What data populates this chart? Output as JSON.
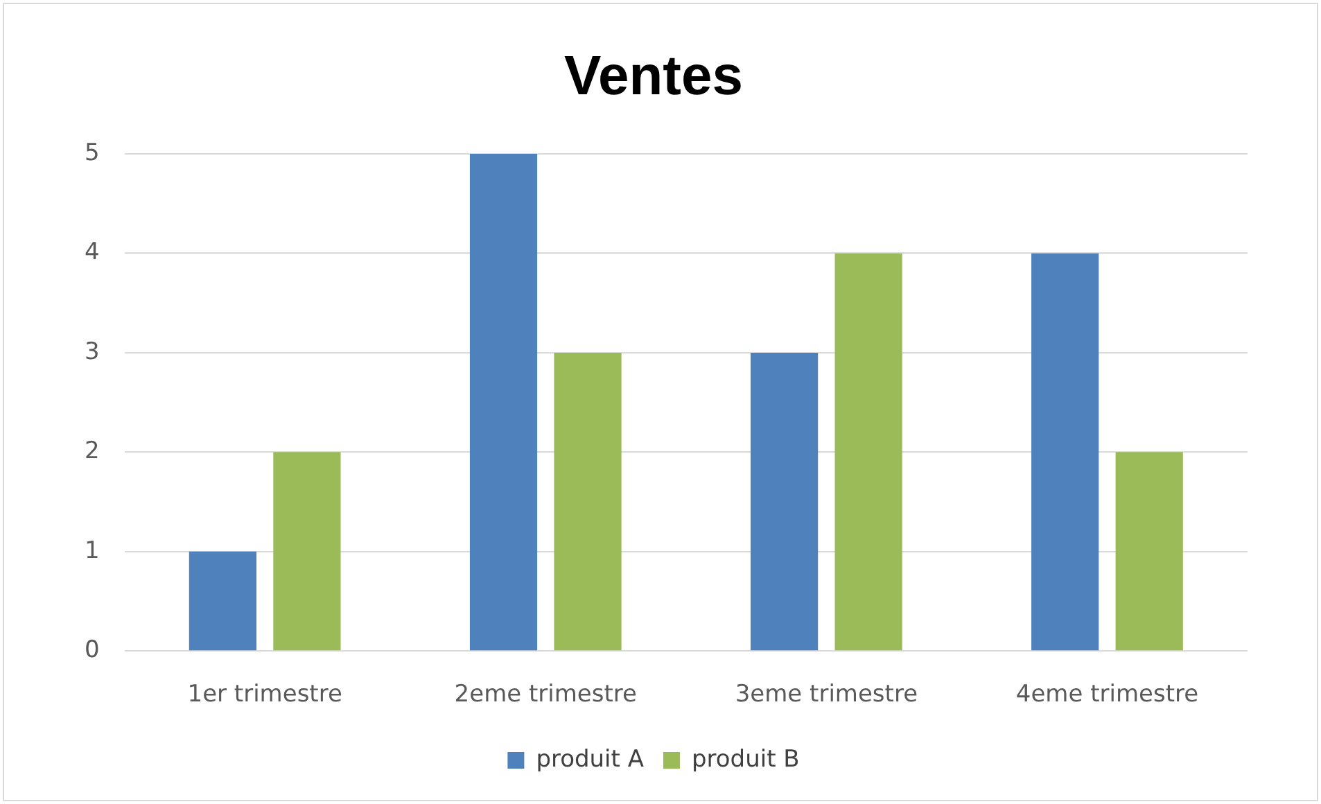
{
  "chart_data": {
    "type": "bar",
    "title": "Ventes",
    "categories": [
      "1er trimestre",
      "2eme trimestre",
      "3eme trimestre",
      "4eme trimestre"
    ],
    "series": [
      {
        "name": "produit A",
        "color": "#4f81bd",
        "values": [
          1,
          5,
          3,
          4
        ]
      },
      {
        "name": "produit B",
        "color": "#9bbb59",
        "values": [
          2,
          3,
          4,
          2
        ]
      }
    ],
    "ylim": [
      0,
      5
    ],
    "yticks": [
      0,
      1,
      2,
      3,
      4,
      5
    ],
    "grid": "y",
    "legend": "bottom"
  }
}
